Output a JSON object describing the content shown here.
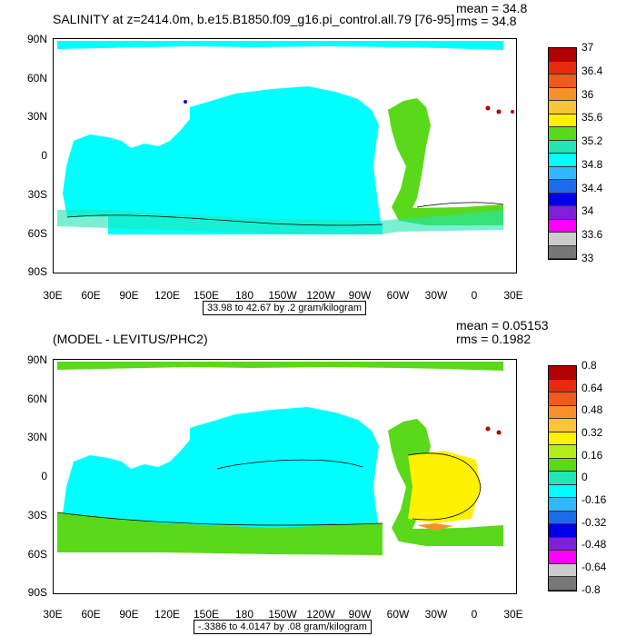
{
  "top": {
    "title": "SALINITY at z=2414.0m, b.e15.B1850.f09_g16.pi_control.all.79 [76-95]",
    "mean": "mean = 34.8",
    "rms": "rms = 34.8",
    "info": "33.98 to 42.67 by .2 gram/kilogram",
    "colorbar_labels": [
      "37",
      "36.4",
      "36",
      "35.6",
      "35.2",
      "34.8",
      "34.4",
      "34",
      "33.6",
      "33"
    ],
    "colorbar_colors": [
      "#b30000",
      "#e52a10",
      "#f05a1f",
      "#f7922b",
      "#fbc53a",
      "#fff200",
      "#59d919",
      "#21e6b5",
      "#00ffff",
      "#30b8ff",
      "#1e6be6",
      "#0000e6",
      "#7f1fd6",
      "#ff00ff",
      "#cccccc",
      "#777777"
    ]
  },
  "bottom": {
    "title": "(MODEL - LEVITUS/PHC2)",
    "mean": "mean = 0.05153",
    "rms": "rms = 0.1982",
    "info": "-.3386 to 4.0147 by .08 gram/kilogram",
    "colorbar_labels": [
      "0.8",
      "0.64",
      "0.48",
      "0.32",
      "0.16",
      "0",
      "-0.16",
      "-0.32",
      "-0.48",
      "-0.64",
      "-0.8"
    ],
    "colorbar_colors": [
      "#b30000",
      "#e52a10",
      "#f05a1f",
      "#f7922b",
      "#fbc53a",
      "#fff200",
      "#b3ee1a",
      "#59d919",
      "#21e6b5",
      "#00ffff",
      "#30b8ff",
      "#1e6be6",
      "#0000e6",
      "#7f1fd6",
      "#ff00ff",
      "#cccccc",
      "#777777"
    ]
  },
  "axes": {
    "y_labels": [
      "90N",
      "60N",
      "30N",
      "0",
      "30S",
      "60S",
      "90S"
    ],
    "x_labels": [
      "30E",
      "60E",
      "90E",
      "120E",
      "150E",
      "180",
      "150W",
      "120W",
      "90W",
      "60W",
      "30W",
      "0",
      "30E"
    ]
  }
}
